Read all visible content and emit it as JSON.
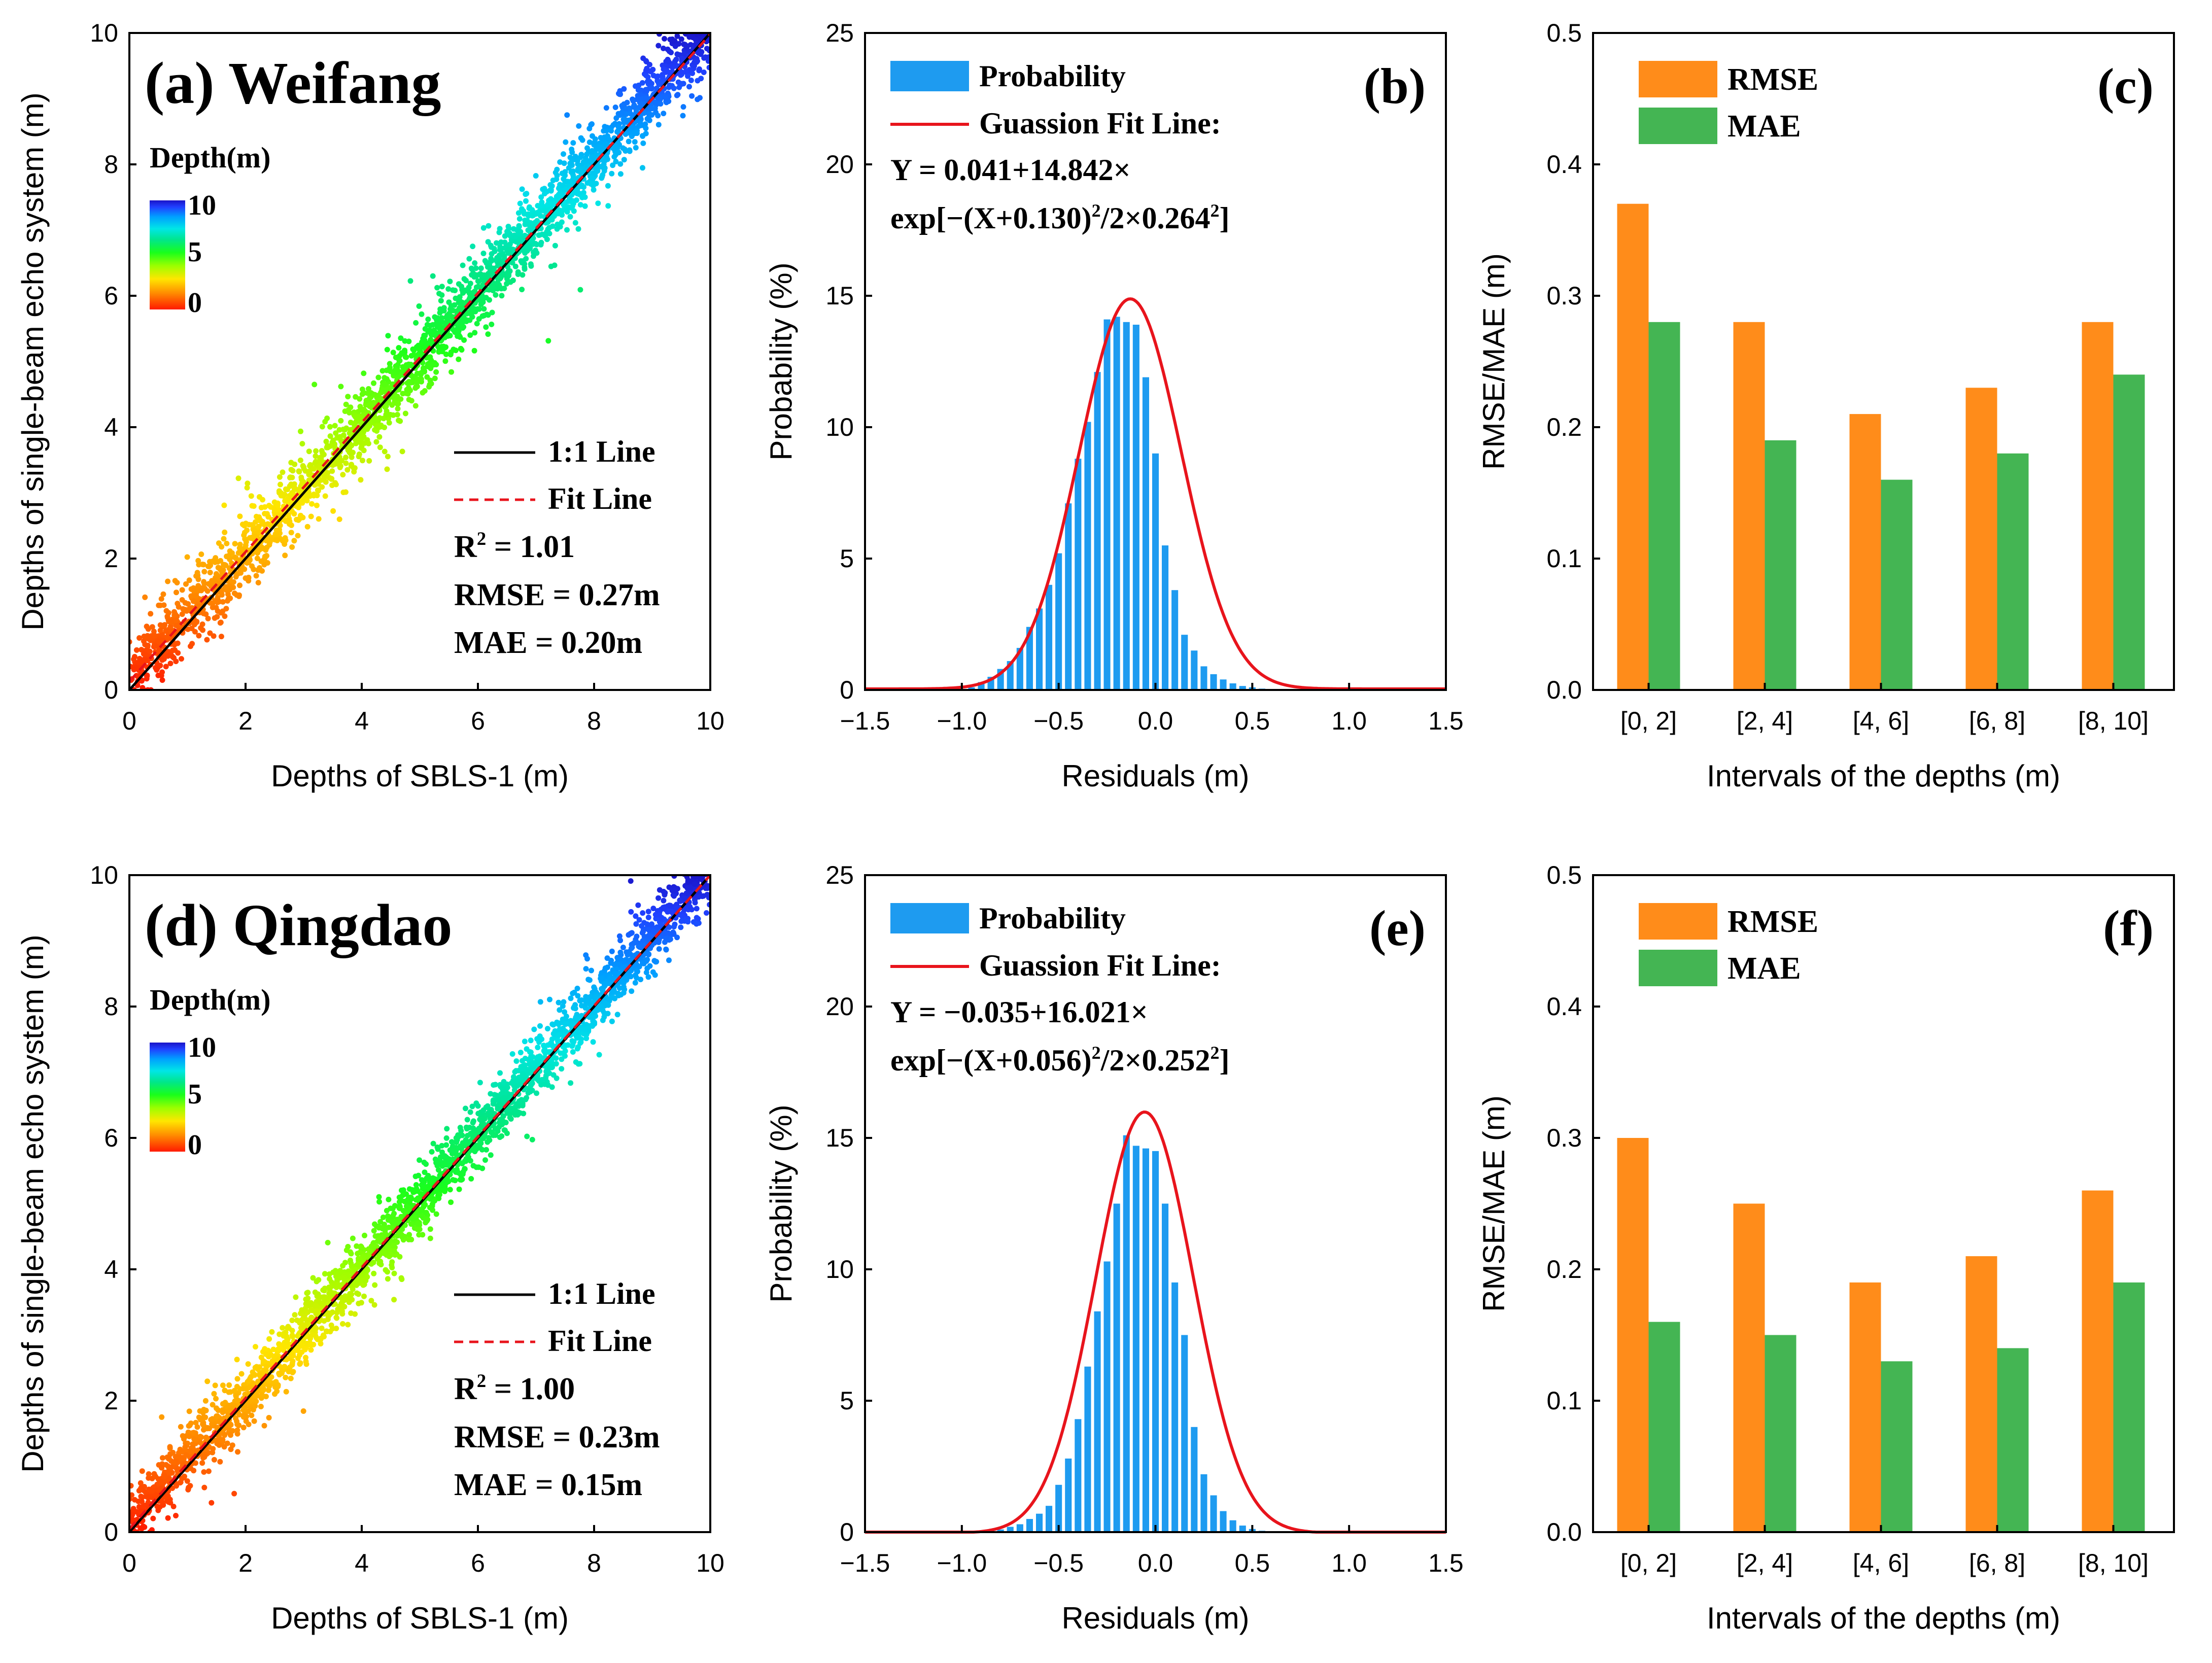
{
  "colors": {
    "axis": "#000000",
    "scatter_depth_colormap": [
      "#ff1a00",
      "#ff8c00",
      "#ffe600",
      "#9bff00",
      "#1aff1a",
      "#00e68c",
      "#00e6e6",
      "#00a0ff",
      "#2040ff",
      "#1a14c8"
    ],
    "histogram_bar": "#1e9bf0",
    "fit_curve": "#e8141c",
    "rmse_bar": "#ff8c1a",
    "mae_bar": "#44b553",
    "one_to_one_line": "#000000",
    "fit_line": "#e8141c"
  },
  "chart_data": [
    {
      "id": "a",
      "type": "scatter",
      "title": "(a) Weifang",
      "xlabel": "Depths of SBLS-1 (m)",
      "ylabel": "Depths of single-beam echo system (m)",
      "xlim": [
        0,
        10
      ],
      "ylim": [
        0,
        10
      ],
      "xticks": [
        "0",
        "2",
        "4",
        "6",
        "8",
        "10"
      ],
      "yticks": [
        "0",
        "2",
        "4",
        "6",
        "8",
        "10"
      ],
      "colorbar": {
        "title": "Depth(m)",
        "labels": [
          "10",
          "5",
          "0"
        ],
        "range": [
          0,
          10
        ]
      },
      "one_to_one": {
        "label": "1:1 Line",
        "from": [
          0,
          0
        ],
        "to": [
          10,
          10
        ]
      },
      "fit_line": {
        "label": "Fit Line",
        "slope": 0.985,
        "intercept": 0.13
      },
      "point_cloud": {
        "count": 2600,
        "x_range": [
          0,
          10
        ],
        "spread_sd": 0.27,
        "seed": 11
      },
      "stats": [
        "R",
        "2",
        " = 1.01",
        "RMSE = 0.27m",
        "MAE = 0.20m"
      ]
    },
    {
      "id": "b",
      "type": "histogram",
      "tag": "(b)",
      "xlabel": "Residuals (m)",
      "ylabel": "Probability (%)",
      "xlim": [
        -1.5,
        1.5
      ],
      "ylim": [
        0,
        25
      ],
      "xticks": [
        "−1.5",
        "−1.0",
        "−0.5",
        "0.0",
        "0.5",
        "1.0",
        "1.5"
      ],
      "yticks": [
        "0",
        "5",
        "10",
        "15",
        "20",
        "25"
      ],
      "bin_width": 0.05,
      "bin_centers": [
        -0.95,
        -0.9,
        -0.85,
        -0.8,
        -0.75,
        -0.7,
        -0.65,
        -0.6,
        -0.55,
        -0.5,
        -0.45,
        -0.4,
        -0.35,
        -0.3,
        -0.25,
        -0.2,
        -0.15,
        -0.1,
        -0.05,
        0.0,
        0.05,
        0.1,
        0.15,
        0.2,
        0.25,
        0.3,
        0.35,
        0.4,
        0.45,
        0.5,
        0.55
      ],
      "values": [
        0.1,
        0.3,
        0.5,
        0.8,
        1.1,
        1.6,
        2.4,
        3.1,
        4.0,
        5.2,
        7.1,
        8.8,
        10.2,
        12.1,
        14.1,
        14.2,
        14.0,
        13.9,
        11.9,
        9.0,
        5.5,
        3.8,
        2.1,
        1.5,
        0.9,
        0.6,
        0.4,
        0.25,
        0.15,
        0.1,
        0.05
      ],
      "fit": {
        "y0": 0.041,
        "A": 14.842,
        "xc": -0.13,
        "w": 0.264
      },
      "legend": {
        "probability": "Probability",
        "fit_line": "Guassion Fit Line:",
        "eq_line1": "Y = 0.041+14.842×",
        "eq_line2_a": "exp[−(X+0.130)",
        "eq_line2_b": "2",
        "eq_line2_c": "/2×0.264",
        "eq_line2_d": "2",
        "eq_line2_e": "]"
      }
    },
    {
      "id": "c",
      "type": "bar",
      "tag": "(c)",
      "xlabel": "Intervals of the depths (m)",
      "ylabel": "RMSE/MAE (m)",
      "ylim": [
        0,
        0.5
      ],
      "yticks": [
        "0.0",
        "0.1",
        "0.2",
        "0.3",
        "0.4",
        "0.5"
      ],
      "categories": [
        "[0, 2]",
        "[2, 4]",
        "[4, 6]",
        "[6, 8]",
        "[8, 10]"
      ],
      "series": [
        {
          "name": "RMSE",
          "values": [
            0.37,
            0.28,
            0.21,
            0.23,
            0.28
          ]
        },
        {
          "name": "MAE",
          "values": [
            0.28,
            0.19,
            0.16,
            0.18,
            0.24
          ]
        }
      ]
    },
    {
      "id": "d",
      "type": "scatter",
      "title": "(d) Qingdao",
      "xlabel": "Depths of SBLS-1 (m)",
      "ylabel": "Depths of single-beam echo system (m)",
      "xlim": [
        0,
        10
      ],
      "ylim": [
        0,
        10
      ],
      "xticks": [
        "0",
        "2",
        "4",
        "6",
        "8",
        "10"
      ],
      "yticks": [
        "0",
        "2",
        "4",
        "6",
        "8",
        "10"
      ],
      "colorbar": {
        "title": "Depth(m)",
        "labels": [
          "10",
          "5",
          "0"
        ],
        "range": [
          0,
          10
        ]
      },
      "one_to_one": {
        "label": "1:1 Line",
        "from": [
          0,
          0
        ],
        "to": [
          10,
          10
        ]
      },
      "fit_line": {
        "label": "Fit Line",
        "slope": 0.995,
        "intercept": 0.05
      },
      "point_cloud": {
        "count": 2600,
        "x_range": [
          0,
          10
        ],
        "spread_sd": 0.23,
        "seed": 29
      },
      "stats": [
        "R",
        "2",
        " = 1.00",
        "RMSE = 0.23m",
        "MAE = 0.15m"
      ]
    },
    {
      "id": "e",
      "type": "histogram",
      "tag": "(e)",
      "xlabel": "Residuals (m)",
      "ylabel": "Probability (%)",
      "xlim": [
        -1.5,
        1.5
      ],
      "ylim": [
        0,
        25
      ],
      "xticks": [
        "−1.5",
        "−1.0",
        "−0.5",
        "0.0",
        "0.5",
        "1.0",
        "1.5"
      ],
      "yticks": [
        "0",
        "5",
        "10",
        "15",
        "20",
        "25"
      ],
      "bin_width": 0.05,
      "bin_centers": [
        -0.85,
        -0.8,
        -0.75,
        -0.7,
        -0.65,
        -0.6,
        -0.55,
        -0.5,
        -0.45,
        -0.4,
        -0.35,
        -0.3,
        -0.25,
        -0.2,
        -0.15,
        -0.1,
        -0.05,
        0.0,
        0.05,
        0.1,
        0.15,
        0.2,
        0.25,
        0.3,
        0.35,
        0.4,
        0.45,
        0.5,
        0.55
      ],
      "values": [
        0.05,
        0.1,
        0.2,
        0.3,
        0.5,
        0.7,
        1.0,
        1.8,
        2.8,
        4.3,
        6.3,
        8.4,
        10.3,
        12.5,
        15.1,
        14.7,
        14.6,
        14.5,
        12.5,
        9.5,
        7.5,
        4.0,
        2.2,
        1.4,
        0.8,
        0.45,
        0.25,
        0.12,
        0.05
      ],
      "fit": {
        "y0": -0.035,
        "A": 16.021,
        "xc": -0.056,
        "w": 0.252
      },
      "legend": {
        "probability": "Probability",
        "fit_line": "Guassion Fit Line:",
        "eq_line1": "Y = −0.035+16.021×",
        "eq_line2_a": "exp[−(X+0.056)",
        "eq_line2_b": "2",
        "eq_line2_c": "/2×0.252",
        "eq_line2_d": "2",
        "eq_line2_e": "]"
      }
    },
    {
      "id": "f",
      "type": "bar",
      "tag": "(f)",
      "xlabel": "Intervals of the depths (m)",
      "ylabel": "RMSE/MAE (m)",
      "ylim": [
        0,
        0.5
      ],
      "yticks": [
        "0.0",
        "0.1",
        "0.2",
        "0.3",
        "0.4",
        "0.5"
      ],
      "categories": [
        "[0, 2]",
        "[2, 4]",
        "[4, 6]",
        "[6, 8]",
        "[8, 10]"
      ],
      "series": [
        {
          "name": "RMSE",
          "values": [
            0.3,
            0.25,
            0.19,
            0.21,
            0.26
          ]
        },
        {
          "name": "MAE",
          "values": [
            0.16,
            0.15,
            0.13,
            0.14,
            0.19
          ]
        }
      ]
    }
  ]
}
